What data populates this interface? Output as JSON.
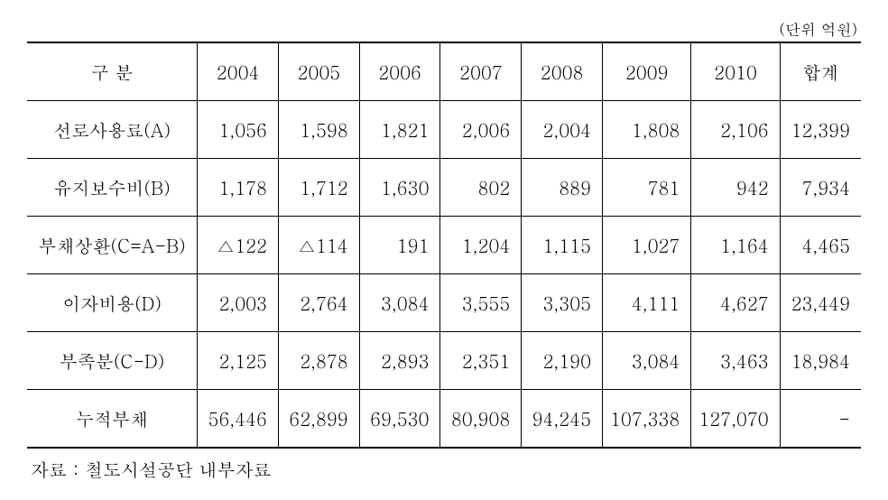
{
  "unit_label": "(단위 억원)",
  "table": {
    "columns": [
      "구 분",
      "2004",
      "2005",
      "2006",
      "2007",
      "2008",
      "2009",
      "2010",
      "합계"
    ],
    "rows": [
      [
        "선로사용료(A)",
        "1,056",
        "1,598",
        "1,821",
        "2,006",
        "2,004",
        "1,808",
        "2,106",
        "12,399"
      ],
      [
        "유지보수비(B)",
        "1,178",
        "1,712",
        "1,630",
        "802",
        "889",
        "781",
        "942",
        "7,934"
      ],
      [
        "부채상환(C=A-B)",
        "△122",
        "△114",
        "191",
        "1,204",
        "1,115",
        "1,027",
        "1,164",
        "4,465"
      ],
      [
        "이자비용(D)",
        "2,003",
        "2,764",
        "3,084",
        "3,555",
        "3,305",
        "4,111",
        "4,627",
        "23,449"
      ],
      [
        "부족분(C-D)",
        "2,125",
        "2,878",
        "2,893",
        "2,351",
        "2,190",
        "3,084",
        "3,463",
        "18,984"
      ],
      [
        "누적부채",
        "56,446",
        "62,899",
        "69,530",
        "80,908",
        "94,245",
        "107,338",
        "127,070",
        "-"
      ]
    ],
    "column_widths_class": [
      "col-label",
      "col-year",
      "col-year",
      "col-year",
      "col-year",
      "col-year",
      "col-year",
      "col-year",
      "col-year"
    ],
    "border_color": "#000000",
    "background_color": "#ffffff",
    "font_size_body": 20,
    "font_size_unit": 17
  },
  "source_label": "자료 : 철도시설공단 내부자료"
}
